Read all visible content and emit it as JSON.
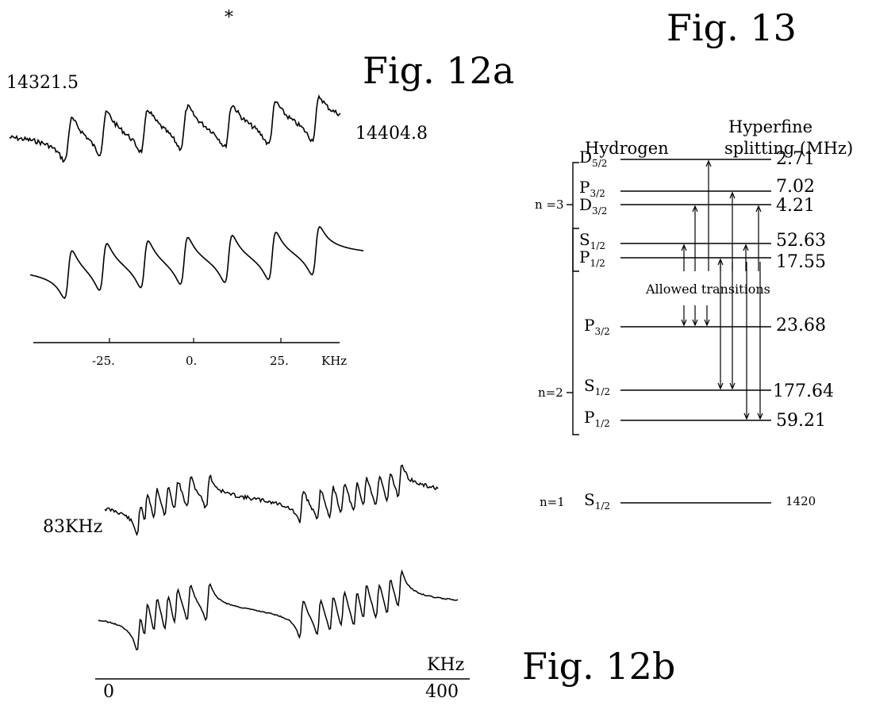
{
  "star": "*",
  "fig12a": {
    "title": "Fig. 12a",
    "start_label": "14321.5",
    "end_label": "14404.8",
    "axis_ticks": [
      "-25.",
      "0.",
      "25."
    ],
    "axis_unit": "KHz"
  },
  "fig12b": {
    "title": "Fig. 12b",
    "span_label": "83KHz",
    "axis_unit": "KHz",
    "axis_ticks": [
      "0",
      "400"
    ]
  },
  "fig13": {
    "title": "Fig. 13",
    "heading_left": "Hydrogen",
    "heading_right_1": "Hyperfine",
    "heading_right_2": "splitting (MHz)",
    "allowed_label": "Allowed transitions",
    "groups": [
      {
        "name": "n =3",
        "levels": [
          {
            "state": "D",
            "sub": "5/2",
            "value": "2.71"
          },
          {
            "state": "P",
            "sub": "3/2",
            "value": "7.02"
          },
          {
            "state": "D",
            "sub": "3/2",
            "value": "4.21"
          },
          {
            "state": "S",
            "sub": "1/2",
            "value": "52.63"
          },
          {
            "state": "P",
            "sub": "1/2",
            "value": "17.55"
          }
        ]
      },
      {
        "name": "n=2",
        "levels": [
          {
            "state": "P",
            "sub": "3/2",
            "value": "23.68"
          },
          {
            "state": "S",
            "sub": "1/2",
            "value": "177.64"
          },
          {
            "state": "P",
            "sub": "1/2",
            "value": "59.21"
          }
        ]
      },
      {
        "name": "n=1",
        "levels": [
          {
            "state": "S",
            "sub": "1/2",
            "value": "1420"
          }
        ]
      }
    ]
  }
}
